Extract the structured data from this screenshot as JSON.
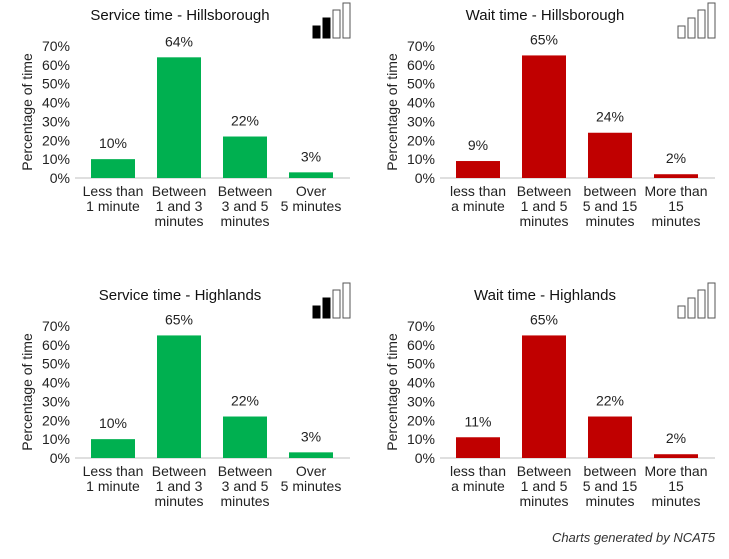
{
  "footer": "Charts generated by NCAT5",
  "colors": {
    "service": "#00b050",
    "wait": "#c00000",
    "axis": "#bfbfbf",
    "text": "#222222"
  },
  "chart_data": [
    {
      "type": "bar",
      "title": "Service time - Hillsborough",
      "ylabel": "Percentage of time",
      "ylim": [
        0,
        70
      ],
      "yticks": [
        "0%",
        "10%",
        "20%",
        "30%",
        "40%",
        "50%",
        "60%",
        "70%"
      ],
      "categories": [
        [
          "Less than",
          "1 minute"
        ],
        [
          "Between",
          "1 and 3",
          "minutes"
        ],
        [
          "Between",
          "3 and 5",
          "minutes"
        ],
        [
          "Over",
          "5 minutes"
        ]
      ],
      "values": [
        10,
        64,
        22,
        3
      ],
      "value_labels": [
        "10%",
        "64%",
        "22%",
        "3%"
      ],
      "color": "#00b050",
      "icon": "signal-strength-icon",
      "icon_filled_bars": 2
    },
    {
      "type": "bar",
      "title": "Wait time - Hillsborough",
      "ylabel": "Percentage of time",
      "ylim": [
        0,
        70
      ],
      "yticks": [
        "0%",
        "10%",
        "20%",
        "30%",
        "40%",
        "50%",
        "60%",
        "70%"
      ],
      "categories": [
        [
          "less than",
          "a minute"
        ],
        [
          "Between",
          "1 and 5",
          "minutes"
        ],
        [
          "between",
          "5 and 15",
          "minutes"
        ],
        [
          "More than",
          "15",
          "minutes"
        ]
      ],
      "values": [
        9,
        65,
        24,
        2
      ],
      "value_labels": [
        "9%",
        "65%",
        "24%",
        "2%"
      ],
      "color": "#c00000",
      "icon": "signal-strength-icon",
      "icon_filled_bars": 0
    },
    {
      "type": "bar",
      "title": "Service time - Highlands",
      "ylabel": "Percentage of time",
      "ylim": [
        0,
        70
      ],
      "yticks": [
        "0%",
        "10%",
        "20%",
        "30%",
        "40%",
        "50%",
        "60%",
        "70%"
      ],
      "categories": [
        [
          "Less than",
          "1 minute"
        ],
        [
          "Between",
          "1 and 3",
          "minutes"
        ],
        [
          "Between",
          "3 and 5",
          "minutes"
        ],
        [
          "Over",
          "5 minutes"
        ]
      ],
      "values": [
        10,
        65,
        22,
        3
      ],
      "value_labels": [
        "10%",
        "65%",
        "22%",
        "3%"
      ],
      "color": "#00b050",
      "icon": "signal-strength-icon",
      "icon_filled_bars": 2
    },
    {
      "type": "bar",
      "title": "Wait time - Highlands",
      "ylabel": "Percentage of time",
      "ylim": [
        0,
        70
      ],
      "yticks": [
        "0%",
        "10%",
        "20%",
        "30%",
        "40%",
        "50%",
        "60%",
        "70%"
      ],
      "categories": [
        [
          "less than",
          "a minute"
        ],
        [
          "Between",
          "1 and 5",
          "minutes"
        ],
        [
          "between",
          "5 and 15",
          "minutes"
        ],
        [
          "More than",
          "15",
          "minutes"
        ]
      ],
      "values": [
        11,
        65,
        22,
        2
      ],
      "value_labels": [
        "11%",
        "65%",
        "22%",
        "2%"
      ],
      "color": "#c00000",
      "icon": "signal-strength-icon",
      "icon_filled_bars": 0
    }
  ]
}
